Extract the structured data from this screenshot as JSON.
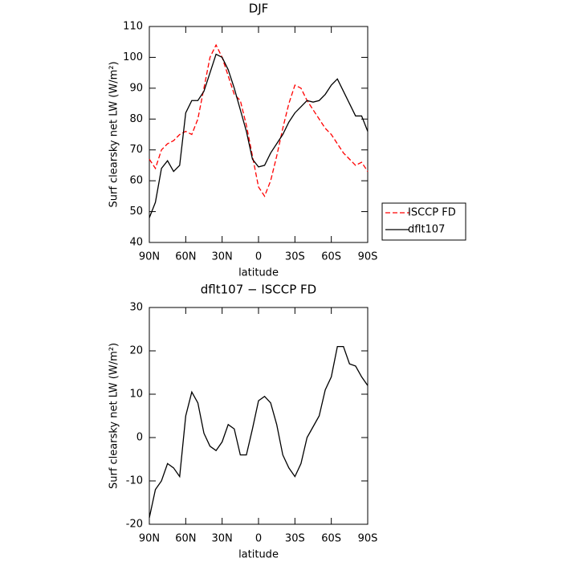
{
  "chart_data": [
    {
      "type": "line",
      "title": "DJF",
      "xlabel": "latitude",
      "ylabel": "Surf clearsky net LW (W/m²)",
      "x": [
        90,
        85,
        80,
        75,
        70,
        65,
        60,
        55,
        50,
        45,
        40,
        35,
        30,
        25,
        20,
        15,
        10,
        5,
        0,
        -5,
        -10,
        -15,
        -20,
        -25,
        -30,
        -35,
        -40,
        -45,
        -50,
        -55,
        -60,
        -65,
        -70,
        -75,
        -80,
        -85,
        -90
      ],
      "series": [
        {
          "name": "ISCCP FD",
          "color": "#ff0000",
          "dash": true,
          "values": [
            67,
            64,
            70,
            72,
            73,
            75,
            76,
            75,
            80,
            90,
            100,
            104,
            100,
            94,
            88,
            86,
            78,
            68,
            58,
            55,
            60,
            68,
            77,
            85,
            91,
            90,
            86,
            83,
            80,
            77,
            75,
            72,
            69,
            67,
            65,
            66,
            63
          ]
        },
        {
          "name": "dflt107",
          "color": "#000000",
          "dash": false,
          "values": [
            48,
            53,
            64,
            66.5,
            63,
            65,
            82,
            86,
            86,
            89,
            95,
            101,
            100,
            96,
            90,
            83,
            76,
            67,
            64.5,
            65,
            69,
            72,
            75,
            79,
            82,
            84,
            86,
            85.5,
            86,
            88,
            91,
            93,
            89,
            85,
            81,
            81,
            76
          ]
        }
      ],
      "xlim": [
        90,
        -90
      ],
      "xticks": [
        {
          "value": 90,
          "label": "90N"
        },
        {
          "value": 60,
          "label": "60N"
        },
        {
          "value": 30,
          "label": "30N"
        },
        0,
        {
          "value": -30,
          "label": "30S"
        },
        {
          "value": -60,
          "label": "60S"
        },
        {
          "value": -90,
          "label": "90S"
        }
      ],
      "ylim": [
        40,
        110
      ],
      "yticks": [
        40,
        50,
        60,
        70,
        80,
        90,
        100,
        110
      ],
      "legend": "right"
    },
    {
      "type": "line",
      "title": "dflt107 − ISCCP FD",
      "xlabel": "latitude",
      "ylabel": "Surf clearsky net LW (W/m²)",
      "x": [
        90,
        85,
        80,
        75,
        70,
        65,
        60,
        55,
        50,
        45,
        40,
        35,
        30,
        25,
        20,
        15,
        10,
        5,
        0,
        -5,
        -10,
        -15,
        -20,
        -25,
        -30,
        -35,
        -40,
        -45,
        -50,
        -55,
        -60,
        -65,
        -70,
        -75,
        -80,
        -85,
        -90
      ],
      "color": "#000000",
      "values": [
        -18.5,
        -12,
        -10,
        -6,
        -7,
        -9,
        5,
        10.5,
        8,
        1,
        -2,
        -3,
        -1,
        3,
        2,
        -4,
        -4,
        2,
        8.5,
        9.5,
        8,
        3,
        -4,
        -7,
        -9,
        -6,
        0,
        2.5,
        5,
        11,
        14,
        21,
        21,
        17,
        16.5,
        14,
        12
      ],
      "xlim": [
        90,
        -90
      ],
      "xticks": [
        {
          "value": 90,
          "label": "90N"
        },
        {
          "value": 60,
          "label": "60N"
        },
        {
          "value": 30,
          "label": "30N"
        },
        0,
        {
          "value": -30,
          "label": "30S"
        },
        {
          "value": -60,
          "label": "60S"
        },
        {
          "value": -90,
          "label": "90S"
        }
      ],
      "ylim": [
        -20,
        30
      ],
      "yticks": [
        -20,
        -10,
        0,
        10,
        20,
        30
      ]
    }
  ]
}
